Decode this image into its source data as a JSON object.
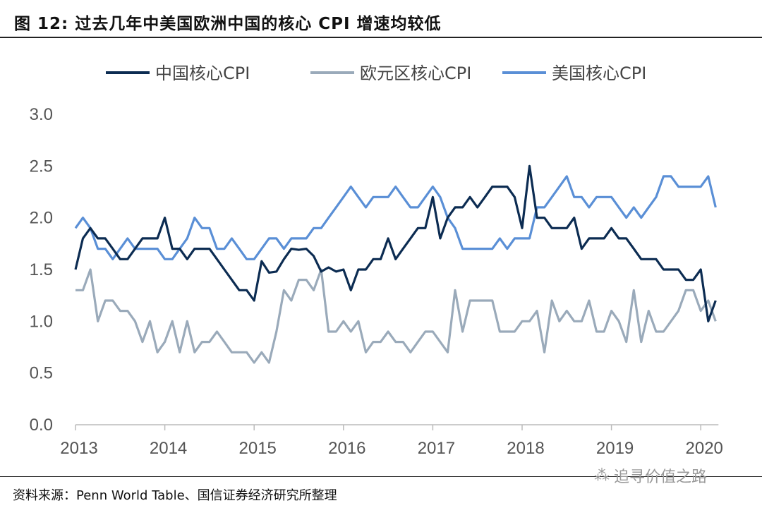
{
  "header": {
    "title": "图  12:  过去几年中美国欧洲中国的核心 CPI 增速均较低"
  },
  "footer": {
    "source": "资料来源：Penn World Table、国信证券经济研究所整理",
    "watermark": "追寻价值之路"
  },
  "colors": {
    "china": "#0c2c52",
    "euro": "#9aaaba",
    "us": "#5a8fd6"
  },
  "chart_data": {
    "type": "line",
    "title": "过去几年中美国欧洲中国的核心 CPI 增速均较低",
    "x_start": "2013-01",
    "frequency": "monthly",
    "xticks": [
      "2013",
      "2014",
      "2015",
      "2016",
      "2017",
      "2018",
      "2019",
      "2020"
    ],
    "yticks": [
      "0.0",
      "0.5",
      "1.0",
      "1.5",
      "2.0",
      "2.5",
      "3.0"
    ],
    "ylim": [
      0,
      3
    ],
    "legend_position": "top",
    "series": [
      {
        "name": "中国核心CPI",
        "color": "#0c2c52",
        "values": [
          1.5,
          1.8,
          1.9,
          1.8,
          1.8,
          1.7,
          1.6,
          1.6,
          1.7,
          1.8,
          1.8,
          1.8,
          2.0,
          1.7,
          1.7,
          1.6,
          1.7,
          1.7,
          1.7,
          1.6,
          1.5,
          1.4,
          1.3,
          1.3,
          1.2,
          1.58,
          1.47,
          1.48,
          1.6,
          1.7,
          1.69,
          1.7,
          1.63,
          1.48,
          1.52,
          1.48,
          1.5,
          1.3,
          1.5,
          1.5,
          1.6,
          1.6,
          1.8,
          1.6,
          1.7,
          1.8,
          1.9,
          1.9,
          2.2,
          1.8,
          2.0,
          2.1,
          2.1,
          2.2,
          2.1,
          2.2,
          2.3,
          2.3,
          2.3,
          2.2,
          1.9,
          2.5,
          2.0,
          2.0,
          1.9,
          1.9,
          1.9,
          2.0,
          1.7,
          1.8,
          1.8,
          1.8,
          1.9,
          1.8,
          1.8,
          1.7,
          1.6,
          1.6,
          1.6,
          1.5,
          1.5,
          1.5,
          1.4,
          1.4,
          1.5,
          1.0,
          1.2
        ]
      },
      {
        "name": "欧元区核心CPI",
        "color": "#9aaaba",
        "values": [
          1.3,
          1.3,
          1.5,
          1.0,
          1.2,
          1.2,
          1.1,
          1.1,
          1.0,
          0.8,
          1.0,
          0.7,
          0.8,
          1.0,
          0.7,
          1.0,
          0.7,
          0.8,
          0.8,
          0.9,
          0.8,
          0.7,
          0.7,
          0.7,
          0.6,
          0.7,
          0.6,
          0.9,
          1.3,
          1.2,
          1.4,
          1.4,
          1.3,
          1.5,
          0.9,
          0.9,
          1.0,
          0.9,
          1.0,
          0.7,
          0.8,
          0.8,
          0.9,
          0.8,
          0.8,
          0.7,
          0.8,
          0.9,
          0.9,
          0.8,
          0.7,
          1.3,
          0.9,
          1.2,
          1.2,
          1.2,
          1.2,
          0.9,
          0.9,
          0.9,
          1.0,
          1.0,
          1.1,
          0.7,
          1.2,
          1.0,
          1.1,
          1.0,
          1.0,
          1.2,
          0.9,
          0.9,
          1.1,
          1.0,
          0.8,
          1.3,
          0.8,
          1.1,
          0.9,
          0.9,
          1.0,
          1.1,
          1.3,
          1.3,
          1.1,
          1.2,
          1.0
        ]
      },
      {
        "name": "美国核心CPI",
        "color": "#5a8fd6",
        "values": [
          1.9,
          2.0,
          1.9,
          1.7,
          1.7,
          1.6,
          1.7,
          1.8,
          1.7,
          1.7,
          1.7,
          1.7,
          1.6,
          1.6,
          1.7,
          1.8,
          2.0,
          1.9,
          1.9,
          1.7,
          1.7,
          1.8,
          1.7,
          1.6,
          1.6,
          1.7,
          1.8,
          1.8,
          1.7,
          1.8,
          1.8,
          1.8,
          1.9,
          1.9,
          2.0,
          2.1,
          2.2,
          2.3,
          2.2,
          2.1,
          2.2,
          2.2,
          2.2,
          2.3,
          2.2,
          2.1,
          2.1,
          2.2,
          2.3,
          2.2,
          2.0,
          1.9,
          1.7,
          1.7,
          1.7,
          1.7,
          1.7,
          1.8,
          1.7,
          1.8,
          1.8,
          1.8,
          2.1,
          2.1,
          2.2,
          2.3,
          2.4,
          2.2,
          2.2,
          2.1,
          2.2,
          2.2,
          2.2,
          2.1,
          2.0,
          2.1,
          2.0,
          2.1,
          2.2,
          2.4,
          2.4,
          2.3,
          2.3,
          2.3,
          2.3,
          2.4,
          2.1
        ]
      }
    ]
  }
}
